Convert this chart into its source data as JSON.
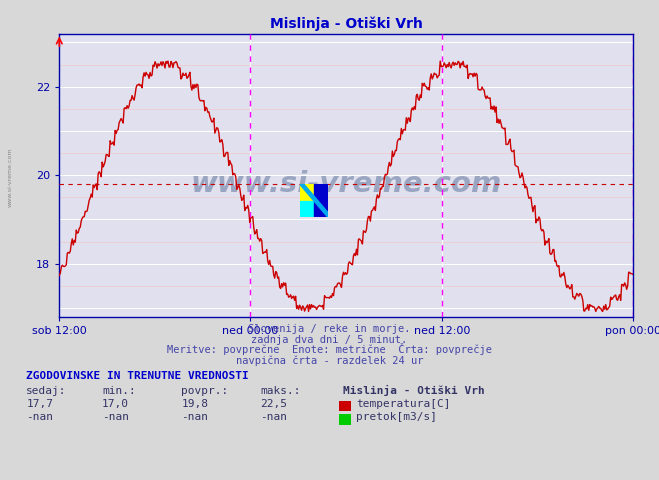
{
  "title": "Mislinja - Otiški Vrh",
  "title_color": "#0000cc",
  "bg_color": "#d8d8d8",
  "plot_bg_color": "#e0e0ee",
  "grid_color_major": "#ffffff",
  "grid_color_minor": "#f0c8c8",
  "line_color": "#cc0000",
  "x_tick_labels": [
    "sob 12:00",
    "ned 00:00",
    "ned 12:00",
    "pon 00:00"
  ],
  "x_tick_positions": [
    0.0,
    0.333,
    0.667,
    1.0
  ],
  "y_ticks": [
    17,
    18,
    19,
    20,
    21,
    22,
    23
  ],
  "y_minor_ticks": [
    17.5,
    18.5,
    19.5,
    20.5,
    21.5,
    22.5
  ],
  "y_min": 16.8,
  "y_max": 23.2,
  "vline_positions": [
    0.333,
    0.667,
    1.0
  ],
  "vline_color": "#ff00ff",
  "hline_value": 19.8,
  "hline_color": "#cc0000",
  "watermark": "www.si-vreme.com",
  "watermark_color": "#1a3a6e",
  "watermark_alpha": 0.35,
  "subtitle_lines": [
    "Slovenija / reke in morje.",
    "zadnja dva dni / 5 minut.",
    "Meritve: povprečne  Enote: metrične  Črta: povprečje",
    "navpična črta - razdelek 24 ur"
  ],
  "subtitle_color": "#4444aa",
  "stats_header": "ZGODOVINSKE IN TRENUTNE VREDNOSTI",
  "stats_color": "#0000cc",
  "col_headers": [
    "sedaj:",
    "min.:",
    "povpr.:",
    "maks.:"
  ],
  "temp_values": [
    "17,7",
    "17,0",
    "19,8",
    "22,5"
  ],
  "flow_values": [
    "-nan",
    "-nan",
    "-nan",
    "-nan"
  ],
  "legend_label_temp": "temperatura[C]",
  "legend_label_flow": "pretok[m3/s]",
  "legend_color_temp": "#cc0000",
  "legend_color_flow": "#00cc00",
  "station_label": "Mislinja - Otiški Vrh",
  "sidebar_text": "www.si-vreme.com"
}
